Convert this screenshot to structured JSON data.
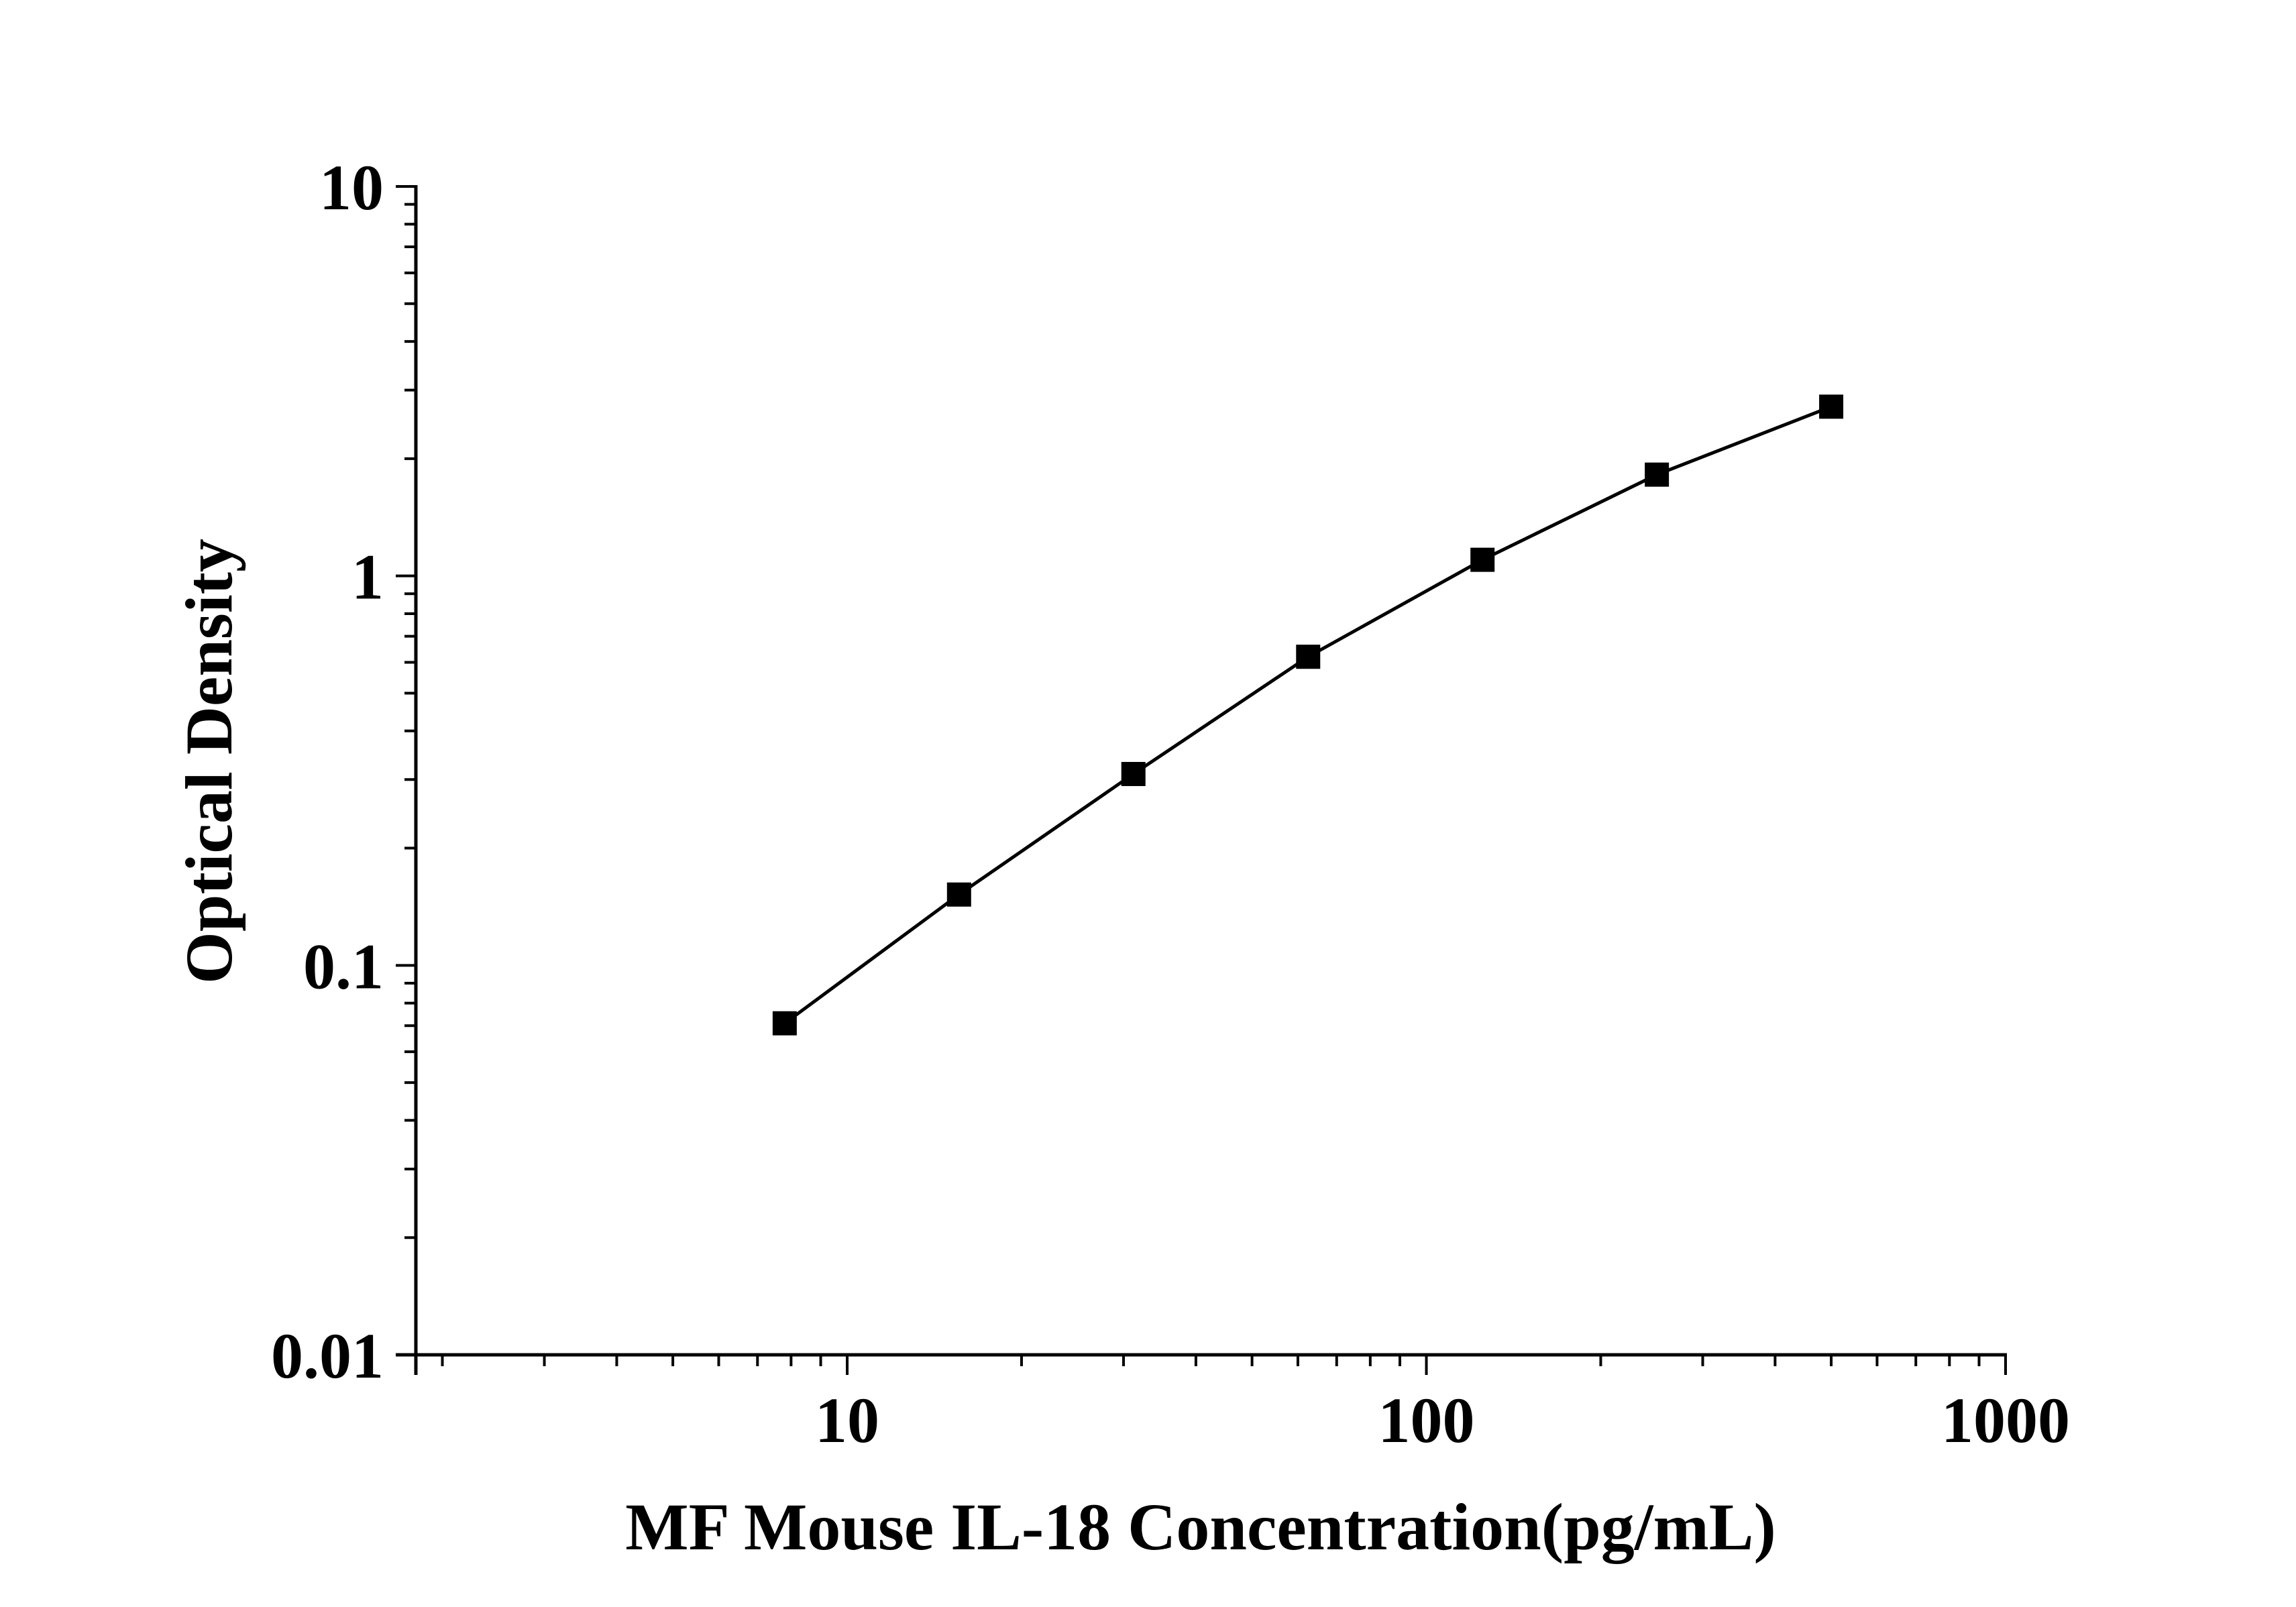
{
  "chart_data": {
    "type": "line",
    "xlabel": "MF Mouse IL-18 Concentration(pg/mL)",
    "ylabel": "Optical Density",
    "x_scale": "log",
    "y_scale": "log",
    "xlim": [
      1.8,
      1000
    ],
    "ylim": [
      0.01,
      10
    ],
    "x_ticks": [
      "10",
      "100",
      "1000"
    ],
    "y_ticks": [
      "0.01",
      "0.1",
      "1",
      "10"
    ],
    "grid": false,
    "legend": "none",
    "marker": "square",
    "colors": {
      "line": "#000000",
      "marker": "#000000"
    },
    "series": [
      {
        "x": [
          7.8,
          15.6,
          31.2,
          62.5,
          125,
          250,
          500
        ],
        "y": [
          0.071,
          0.152,
          0.31,
          0.62,
          1.1,
          1.82,
          2.72
        ]
      }
    ]
  }
}
